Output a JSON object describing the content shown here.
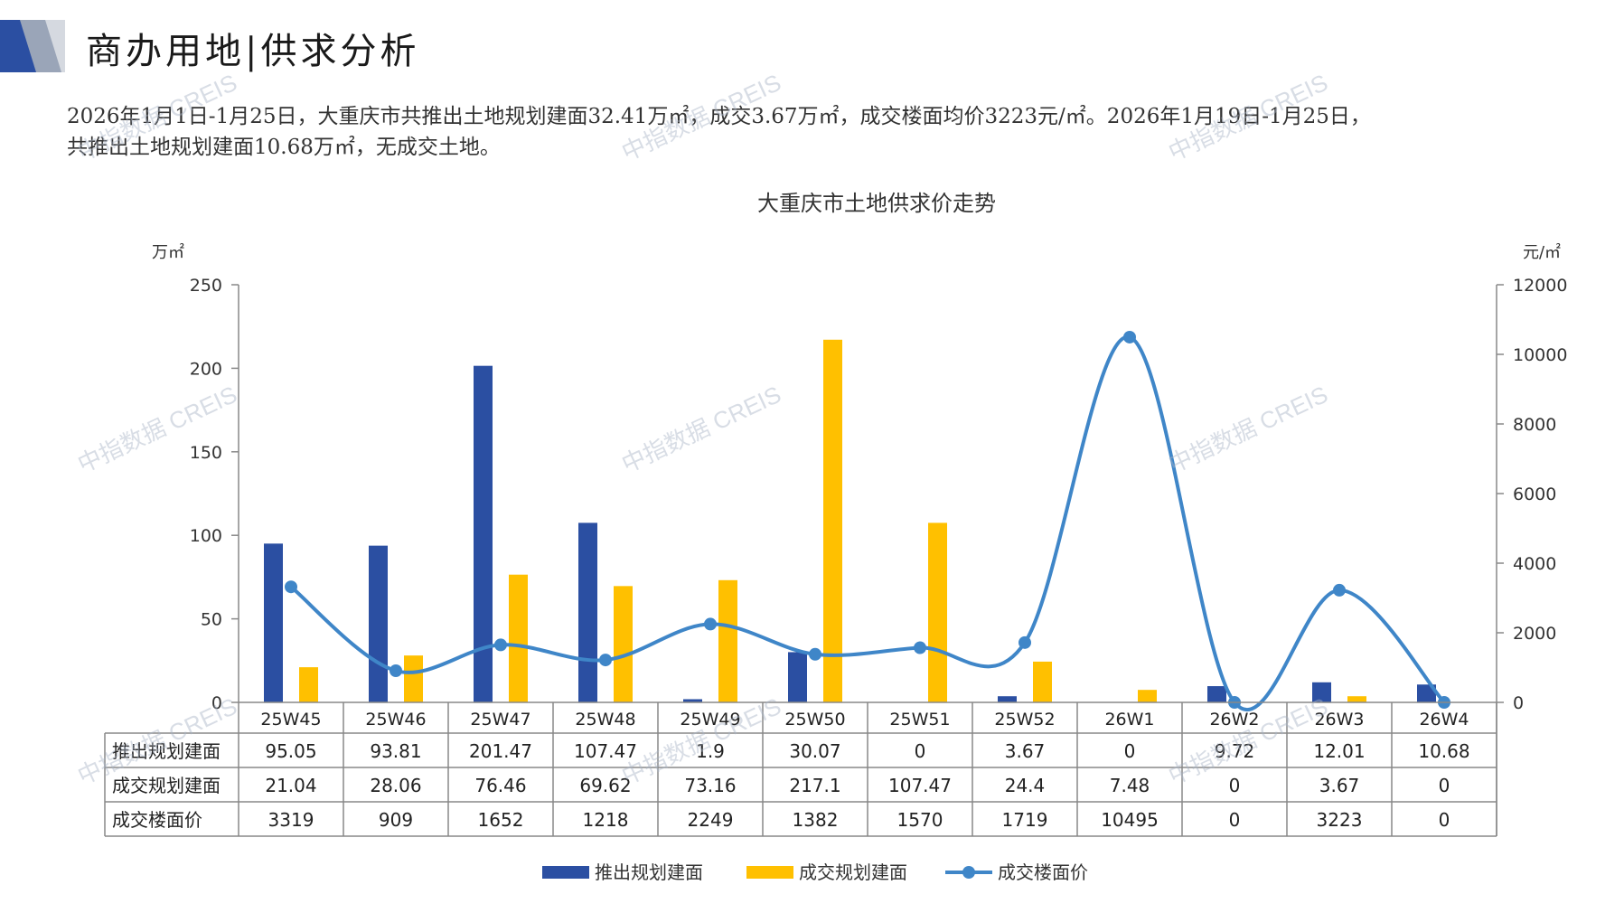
{
  "header": {
    "title": "商办用地|供求分析"
  },
  "summary": {
    "line1": "2026年1月1日-1月25日，大重庆市共推出土地规划建面32.41万㎡，成交3.67万㎡，成交楼面均价3223元/㎡。2026年1月19日-1月25日，",
    "line2": "共推出土地规划建面10.68万㎡，无成交土地。"
  },
  "watermark": "中指数据 CREIS",
  "colors": {
    "supply": "#2b4fa2",
    "deal": "#ffc000",
    "price": "#3f86c8",
    "grid": "#888888"
  },
  "chart_data": {
    "type": "bar",
    "title": "大重庆市土地供求价走势",
    "ylabel_left": "万㎡",
    "ylabel_right": "元/㎡",
    "ylim_left": [
      0,
      250
    ],
    "yticks_left": [
      0,
      50,
      100,
      150,
      200,
      250
    ],
    "ylim_right": [
      0,
      12000
    ],
    "yticks_right": [
      0,
      2000,
      4000,
      6000,
      8000,
      10000,
      12000
    ],
    "categories": [
      "25W45",
      "25W46",
      "25W47",
      "25W48",
      "25W49",
      "25W50",
      "25W51",
      "25W52",
      "26W1",
      "26W2",
      "26W3",
      "26W4"
    ],
    "series": [
      {
        "name": "推出规划建面",
        "type": "bar",
        "axis": "left",
        "color": "#2b4fa2",
        "values": [
          95.05,
          93.81,
          201.47,
          107.47,
          1.9,
          30.07,
          0,
          3.67,
          0,
          9.72,
          12.01,
          10.68
        ],
        "labels": [
          "95.05",
          "93.81",
          "201.47",
          "107.47",
          "1.9",
          "30.07",
          "0",
          "3.67",
          "0",
          "9.72",
          "12.01",
          "10.68"
        ]
      },
      {
        "name": "成交规划建面",
        "type": "bar",
        "axis": "left",
        "color": "#ffc000",
        "values": [
          21.04,
          28.06,
          76.46,
          69.62,
          73.16,
          217.1,
          107.47,
          24.4,
          7.48,
          0,
          3.67,
          0
        ],
        "labels": [
          "21.04",
          "28.06",
          "76.46",
          "69.62",
          "73.16",
          "217.1",
          "107.47",
          "24.4",
          "7.48",
          "0",
          "3.67",
          "0"
        ]
      },
      {
        "name": "成交楼面价",
        "type": "line",
        "axis": "right",
        "color": "#3f86c8",
        "values": [
          3319,
          909,
          1652,
          1218,
          2249,
          1382,
          1570,
          1719,
          10495,
          0,
          3223,
          0
        ],
        "labels": [
          "3319",
          "909",
          "1652",
          "1218",
          "2249",
          "1382",
          "1570",
          "1719",
          "10495",
          "0",
          "3223",
          "0"
        ]
      }
    ],
    "legend": "bottom",
    "data_table": true
  }
}
